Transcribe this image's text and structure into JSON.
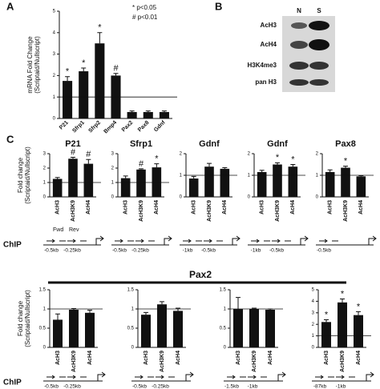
{
  "panel_labels": [
    "A",
    "B",
    "C"
  ],
  "significance_legend": [
    "* p<0.05",
    "# p<0.01"
  ],
  "blot": {
    "lanes": [
      "N",
      "S"
    ],
    "rows": [
      "AcH3",
      "AcH4",
      "H3K4me3",
      "pan H3"
    ]
  },
  "group_title": "Pax2",
  "chip": {
    "labels": [
      "ChIP",
      "ChIP"
    ],
    "primers": [
      "Fwd",
      "Rev"
    ]
  },
  "chart_data": [
    {
      "type": "bar",
      "ylabel": [
        "mRNA Fold Change",
        "(Scriptaid/Nullscript)"
      ],
      "categories": [
        "P21",
        "Sfrp1",
        "Sfrp2",
        "Bmp4",
        "Pax2",
        "Pax8",
        "Gdnf"
      ],
      "values": [
        1.75,
        2.2,
        3.5,
        2.0,
        0.3,
        0.3,
        0.3
      ],
      "errors": [
        0.2,
        0.15,
        0.5,
        0.1,
        0.05,
        0.05,
        0.05
      ],
      "annotations": [
        "*",
        "*",
        "*",
        "#",
        null,
        null,
        null
      ],
      "ylim": [
        0,
        5
      ],
      "yticks": [
        0,
        1,
        2,
        3,
        4,
        5
      ],
      "reference_line": 1,
      "color": "#111111"
    },
    {
      "type": "bar",
      "title": "P21",
      "ylabel": [
        "Fold change",
        "(Scriptaid/Nullscript)"
      ],
      "categories": [
        "AcH3",
        "AcH3K9",
        "AcH4"
      ],
      "values": [
        1.25,
        2.65,
        2.3
      ],
      "errors": [
        0.1,
        0.1,
        0.3
      ],
      "annotations": [
        null,
        "#",
        "#"
      ],
      "ylim": [
        0,
        3
      ],
      "yticks": [
        0,
        1,
        2,
        3
      ],
      "reference_line": 1,
      "color": "#111111",
      "promoter_labels": [
        "-0.5kb",
        "-0.25kb"
      ]
    },
    {
      "type": "bar",
      "title": "Sfrp1",
      "categories": [
        "AcH3",
        "AcH3K9",
        "AcH4"
      ],
      "values": [
        1.3,
        1.9,
        2.05
      ],
      "errors": [
        0.15,
        0.05,
        0.25
      ],
      "annotations": [
        null,
        "#",
        "*"
      ],
      "ylim": [
        0,
        3
      ],
      "yticks": [
        0,
        1,
        2,
        3
      ],
      "reference_line": 1,
      "color": "#111111",
      "promoter_labels": [
        "-0.5kb",
        "-0.25kb"
      ]
    },
    {
      "type": "bar",
      "title": "Gdnf",
      "categories": [
        "AcH3",
        "AcH3K9",
        "AcH4"
      ],
      "values": [
        0.85,
        1.4,
        1.3
      ],
      "errors": [
        0.1,
        0.15,
        0.05
      ],
      "annotations": [
        null,
        null,
        null
      ],
      "ylim": [
        0,
        2
      ],
      "yticks": [
        0,
        1,
        2
      ],
      "reference_line": 1,
      "color": "#111111",
      "promoter_labels": [
        "-1kb",
        "-0.5kb"
      ]
    },
    {
      "type": "bar",
      "title": "Gdnf",
      "categories": [
        "AcH3",
        "AcH3K9",
        "AcH4"
      ],
      "values": [
        1.15,
        1.5,
        1.4
      ],
      "errors": [
        0.08,
        0.08,
        0.1
      ],
      "annotations": [
        null,
        "*",
        "*"
      ],
      "ylim": [
        0,
        2
      ],
      "yticks": [
        0,
        1,
        2
      ],
      "reference_line": 1,
      "color": "#111111",
      "promoter_labels": [
        "-1kb",
        "-0.5kb"
      ]
    },
    {
      "type": "bar",
      "title": "Pax8",
      "categories": [
        "AcH3",
        "AcH3K9",
        "AcH4"
      ],
      "values": [
        1.15,
        1.35,
        0.95
      ],
      "errors": [
        0.1,
        0.07,
        0.03
      ],
      "annotations": [
        null,
        "*",
        null
      ],
      "ylim": [
        0,
        2
      ],
      "yticks": [
        0,
        1,
        2
      ],
      "reference_line": 1,
      "color": "#111111",
      "promoter_labels": [
        "-0.5kb"
      ]
    },
    {
      "type": "bar",
      "ylabel": [
        "Fold change",
        "(Scriptaid/Nullscript)"
      ],
      "categories": [
        "AcH3",
        "AcH3K9",
        "AcH4"
      ],
      "values": [
        0.72,
        0.98,
        0.9
      ],
      "errors": [
        0.15,
        0.03,
        0.07
      ],
      "annotations": [
        null,
        null,
        null
      ],
      "ylim": [
        0,
        1.5
      ],
      "yticks": [
        0,
        0.5,
        1,
        1.5
      ],
      "reference_line": 1,
      "color": "#111111",
      "promoter_labels": [
        "-0.5kb",
        "-0.25kb"
      ]
    },
    {
      "type": "bar",
      "categories": [
        "AcH3",
        "AcH3K9",
        "AcH4"
      ],
      "values": [
        0.85,
        1.12,
        0.95
      ],
      "errors": [
        0.06,
        0.07,
        0.07
      ],
      "annotations": [
        null,
        null,
        null
      ],
      "ylim": [
        0,
        1.5
      ],
      "yticks": [
        0,
        0.5,
        1,
        1.5
      ],
      "reference_line": 1,
      "color": "#111111",
      "promoter_labels": [
        "-0.5kb",
        "-0.25kb"
      ]
    },
    {
      "type": "bar",
      "categories": [
        "AcH3",
        "AcH3K9",
        "AcH4"
      ],
      "values": [
        1.0,
        1.0,
        0.98
      ],
      "errors": [
        0.3,
        0.02,
        0.02
      ],
      "annotations": [
        null,
        null,
        null
      ],
      "ylim": [
        0,
        1.5
      ],
      "yticks": [
        0,
        0.5,
        1,
        1.5
      ],
      "reference_line": 1,
      "color": "#111111",
      "promoter_labels": [
        "-1.5kb",
        "-1kb"
      ]
    },
    {
      "type": "bar",
      "categories": [
        "AcH3",
        "AcH3K9",
        "AcH4"
      ],
      "values": [
        2.2,
        3.9,
        2.8
      ],
      "errors": [
        0.2,
        0.3,
        0.3
      ],
      "annotations": [
        "*",
        "*",
        "*"
      ],
      "ylim": [
        0,
        5
      ],
      "yticks": [
        0,
        1,
        2,
        3,
        4,
        5
      ],
      "reference_line": 1,
      "color": "#111111",
      "promoter_labels": [
        "-87kb",
        "-1kb"
      ]
    }
  ]
}
